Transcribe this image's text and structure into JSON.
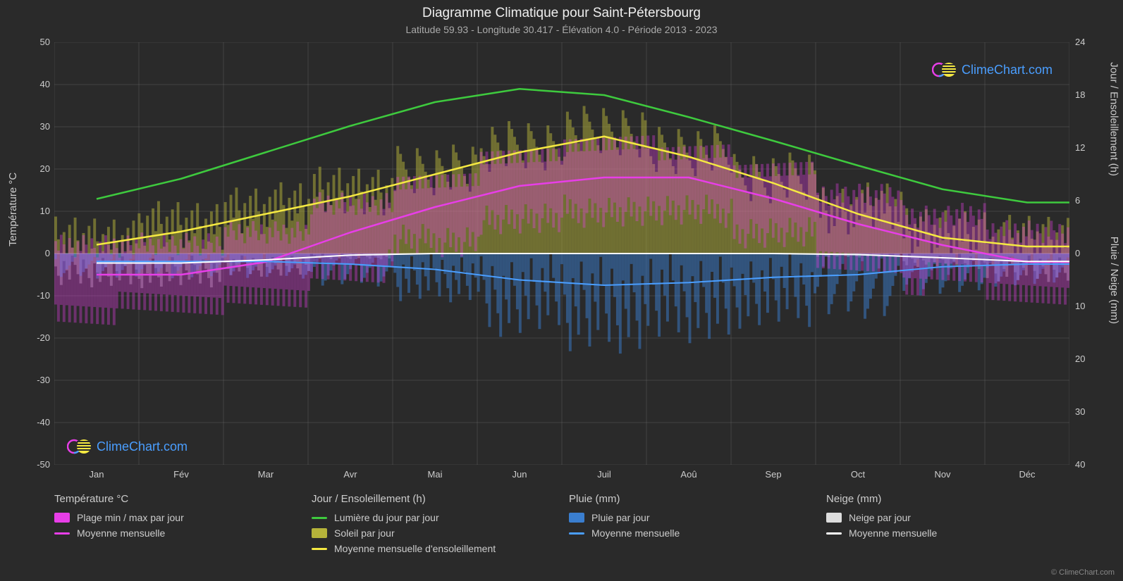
{
  "title": "Diagramme Climatique pour Saint-Pétersbourg",
  "subtitle": "Latitude 59.93 - Longitude 30.417 - Élévation 4.0 - Période 2013 - 2023",
  "axis_left_label": "Température °C",
  "axis_right_top_label": "Jour / Ensoleillement (h)",
  "axis_right_bottom_label": "Pluie / Neige (mm)",
  "background_color": "#2a2a2a",
  "plot_background": "#2a2a2a",
  "grid_color": "#666666",
  "grid_opacity": 0.4,
  "text_color": "#cccccc",
  "chart": {
    "y_left": {
      "min": -50,
      "max": 50,
      "step": 10
    },
    "y_right_top": {
      "min": 0,
      "max": 24,
      "step": 6
    },
    "y_right_bottom": {
      "min": 0,
      "max": 40,
      "step": 10
    },
    "months": [
      "Jan",
      "Fév",
      "Mar",
      "Avr",
      "Mai",
      "Jun",
      "Juil",
      "Aoû",
      "Sep",
      "Oct",
      "Nov",
      "Déc"
    ],
    "series": {
      "daylight": {
        "color": "#3eca3e",
        "width": 2.5,
        "values_h": [
          6.2,
          8.5,
          11.5,
          14.5,
          17.2,
          18.7,
          18.0,
          15.5,
          12.8,
          10.0,
          7.3,
          5.8
        ]
      },
      "sunshine_monthly": {
        "color": "#f5e942",
        "width": 2.5,
        "values_h": [
          1.0,
          2.5,
          4.5,
          6.5,
          9.0,
          11.5,
          13.3,
          11.0,
          8.0,
          4.5,
          1.8,
          0.8
        ]
      },
      "temp_monthly": {
        "color": "#e83ee8",
        "width": 2.5,
        "values_c": [
          -5,
          -5,
          -2,
          5,
          11,
          16,
          18,
          18,
          13,
          7,
          2,
          -2
        ]
      },
      "rain_monthly": {
        "color": "#4a9eff",
        "width": 2,
        "values_mm": [
          1.5,
          1.5,
          1.5,
          2,
          3,
          5,
          6,
          5.5,
          4.5,
          4,
          2.5,
          2
        ]
      },
      "snow_monthly": {
        "color": "#ffffff",
        "width": 2,
        "values_mm": [
          1.8,
          1.8,
          1.2,
          0.3,
          0,
          0,
          0,
          0,
          0,
          0.2,
          0.8,
          1.5
        ]
      }
    },
    "bars": {
      "temp_range": {
        "color": "#e83ee8",
        "opacity": 0.35
      },
      "sunshine_daily": {
        "color": "#b5b33a",
        "opacity": 0.5
      },
      "rain_daily": {
        "color": "#3a7ecf",
        "opacity": 0.5
      },
      "snow_daily": {
        "color": "#dddddd",
        "opacity": 0.35
      }
    }
  },
  "legend": {
    "col1": {
      "title": "Température °C",
      "items": [
        {
          "type": "swatch",
          "color": "#e83ee8",
          "label": "Plage min / max par jour"
        },
        {
          "type": "line",
          "color": "#e83ee8",
          "label": "Moyenne mensuelle"
        }
      ]
    },
    "col2": {
      "title": "Jour / Ensoleillement (h)",
      "items": [
        {
          "type": "line",
          "color": "#3eca3e",
          "label": "Lumière du jour par jour"
        },
        {
          "type": "swatch",
          "color": "#b5b33a",
          "label": "Soleil par jour"
        },
        {
          "type": "line",
          "color": "#f5e942",
          "label": "Moyenne mensuelle d'ensoleillement"
        }
      ]
    },
    "col3": {
      "title": "Pluie (mm)",
      "items": [
        {
          "type": "swatch",
          "color": "#3a7ecf",
          "label": "Pluie par jour"
        },
        {
          "type": "line",
          "color": "#4a9eff",
          "label": "Moyenne mensuelle"
        }
      ]
    },
    "col4": {
      "title": "Neige (mm)",
      "items": [
        {
          "type": "swatch",
          "color": "#dddddd",
          "label": "Neige par jour"
        },
        {
          "type": "line",
          "color": "#ffffff",
          "label": "Moyenne mensuelle"
        }
      ]
    }
  },
  "watermark_text": "ClimeChart.com",
  "copyright": "© ClimeChart.com"
}
